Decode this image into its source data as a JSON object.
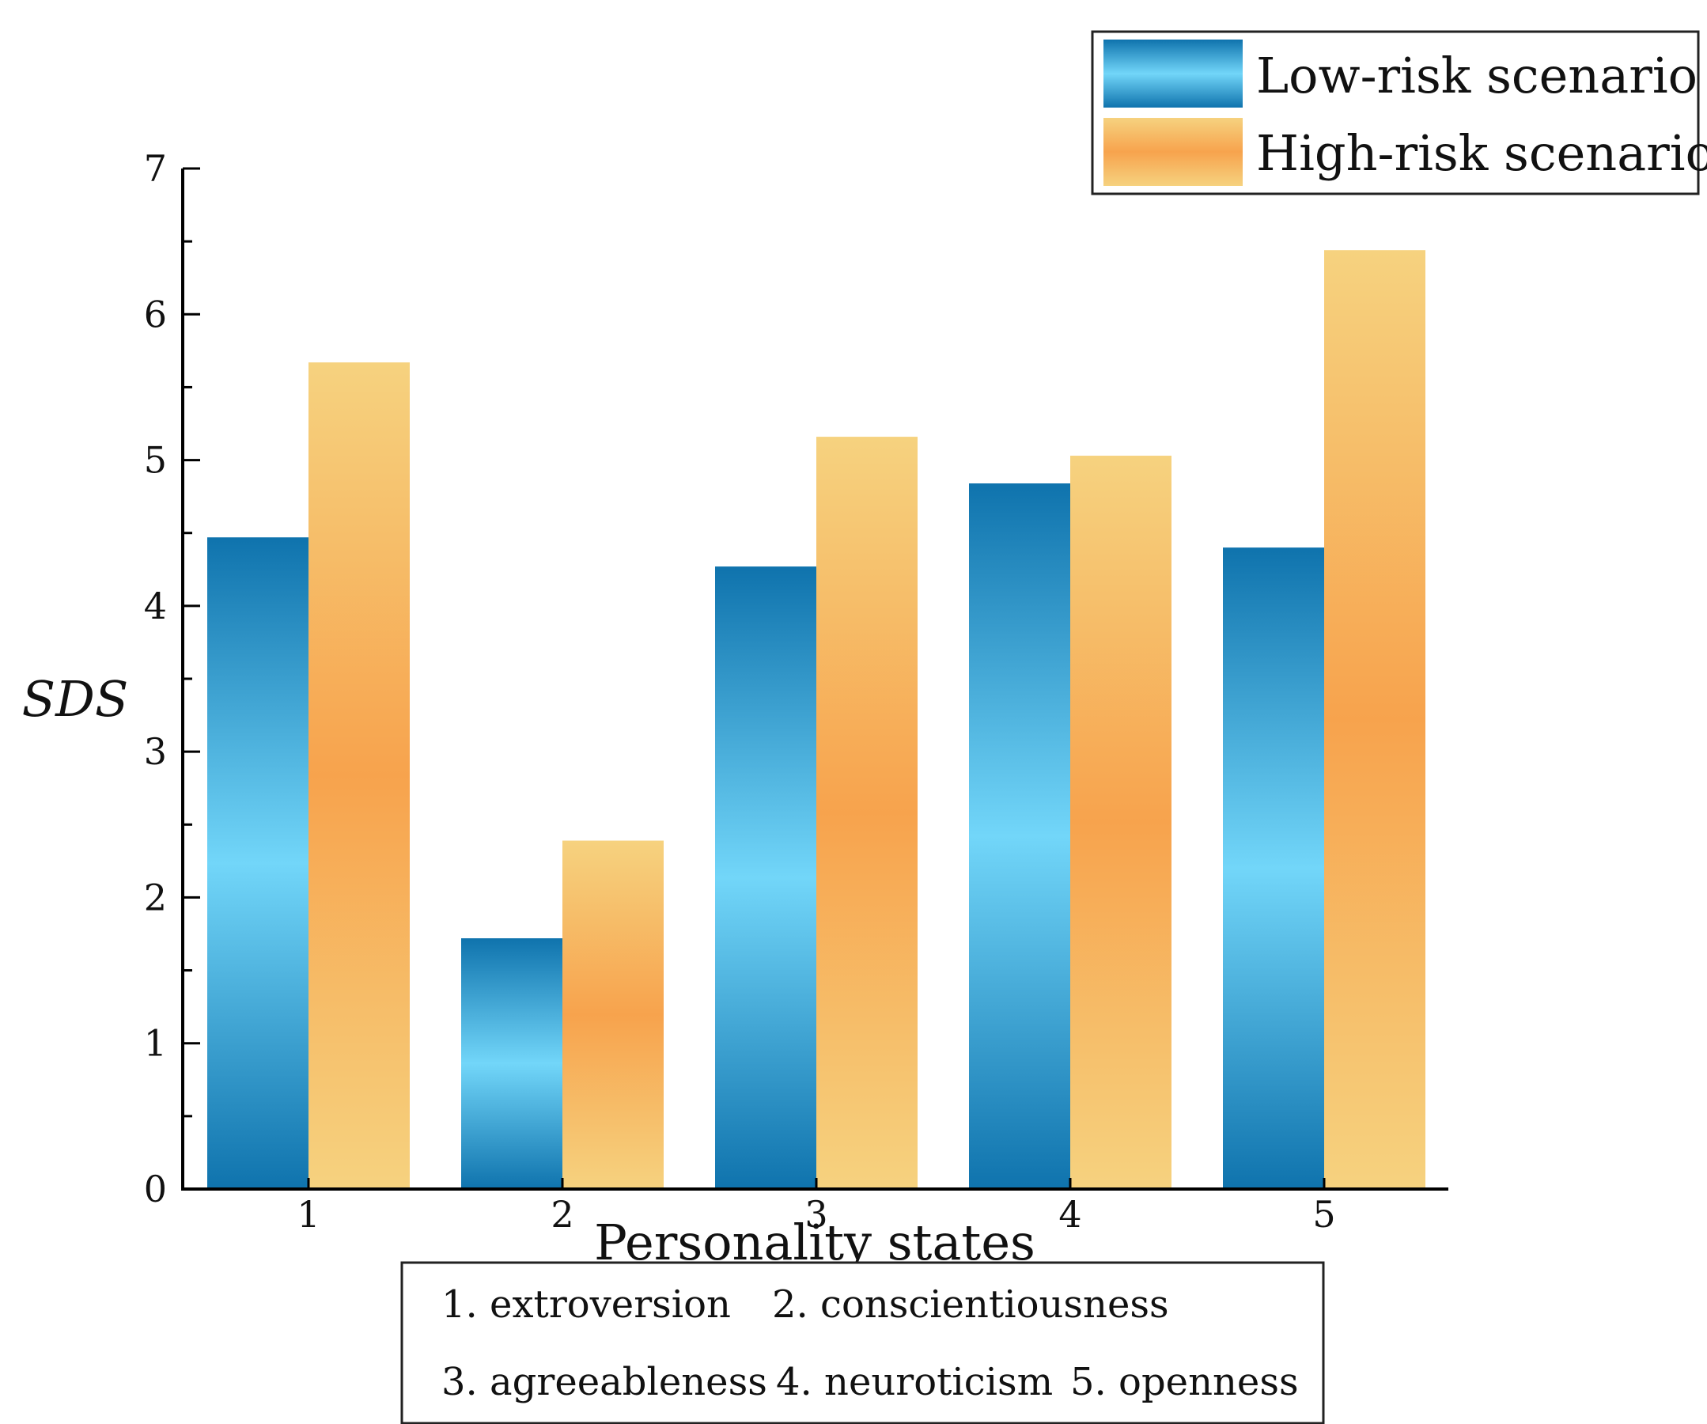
{
  "chart_data": {
    "type": "bar",
    "categories": [
      "1",
      "2",
      "3",
      "4",
      "5"
    ],
    "series": [
      {
        "name": "Low-risk scenario",
        "values": [
          4.47,
          1.72,
          4.27,
          4.84,
          4.4
        ]
      },
      {
        "name": "High-risk scenario",
        "values": [
          5.67,
          2.39,
          5.16,
          5.03,
          6.44
        ]
      }
    ],
    "xlabel": "Personality states",
    "ylabel": "SDS",
    "ylim": [
      0,
      7
    ],
    "yticks": [
      "0",
      "1",
      "2",
      "3",
      "4",
      "5",
      "6",
      "7"
    ],
    "legend_position": "top-right",
    "grid": false,
    "note_lines": [
      [
        "1. extroversion",
        "2. conscientiousness"
      ],
      [
        "3. agreeableness",
        "4. neuroticism",
        "5. openness"
      ]
    ]
  },
  "colors": {
    "low_dark": "#0f73ad",
    "low_light": "#72d6f9",
    "high_light": "#f6d27f",
    "high_mid": "#f7a34d",
    "axis": "#000000"
  }
}
